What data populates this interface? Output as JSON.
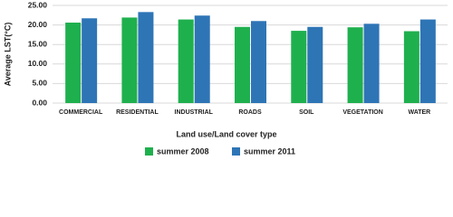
{
  "chart_data": {
    "type": "bar",
    "x_label": "Land use/Land cover type",
    "y_label": "Average LST(°C)",
    "categories": [
      "COMMERCIAL",
      "RESIDENTIAL",
      "INDUSTRIAL",
      "ROADS",
      "SOIL",
      "VEGETATION",
      "WATER"
    ],
    "series": [
      {
        "name": "summer 2008",
        "color": "#1fb04e",
        "values": [
          20.6,
          21.9,
          21.4,
          19.5,
          18.5,
          19.4,
          18.4
        ]
      },
      {
        "name": "summer 2011",
        "color": "#2e75b6",
        "values": [
          21.7,
          23.3,
          22.4,
          21.0,
          19.5,
          20.3,
          21.4
        ]
      }
    ],
    "ylim": [
      0,
      25
    ],
    "yticks": [
      {
        "value": 0,
        "label": "0.00"
      },
      {
        "value": 5,
        "label": "5.00"
      },
      {
        "value": 10,
        "label": "10.00"
      },
      {
        "value": 15,
        "label": "15.00"
      },
      {
        "value": 20,
        "label": "20.00"
      },
      {
        "value": 25,
        "label": "25.00"
      }
    ],
    "grid": true,
    "legend": "bottom"
  }
}
